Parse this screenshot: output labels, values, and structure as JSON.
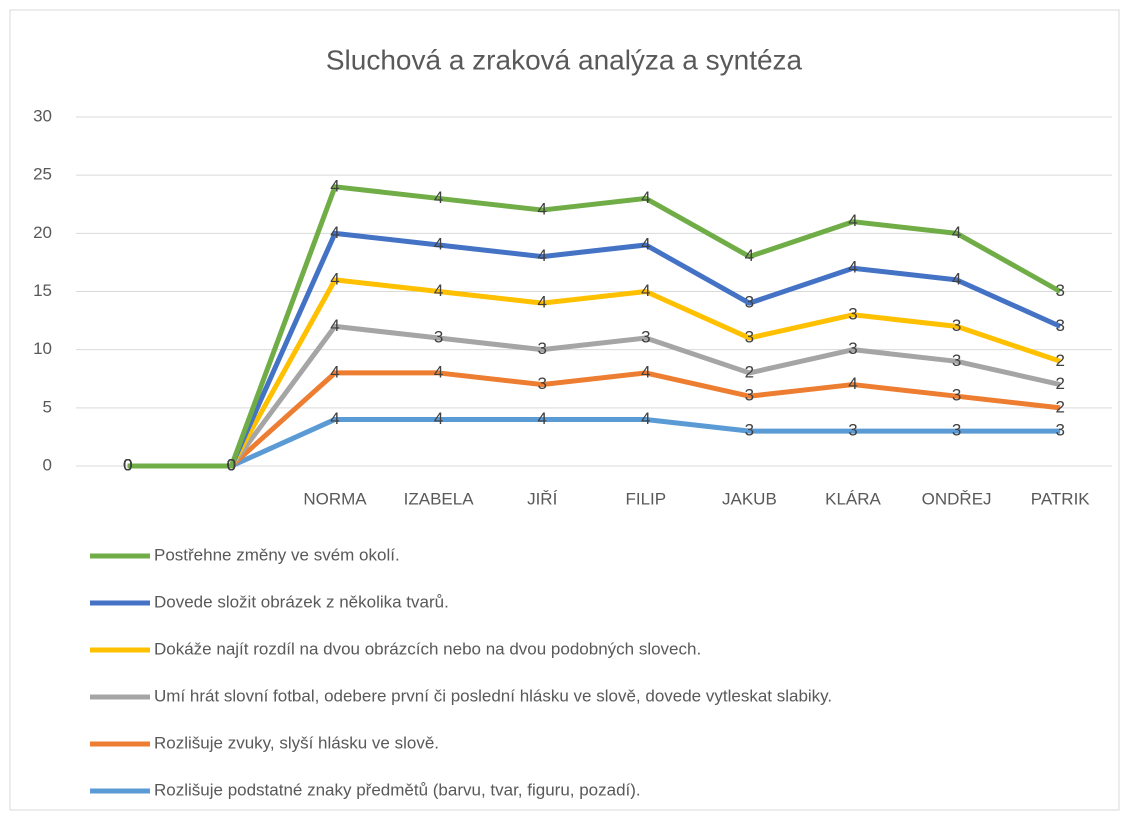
{
  "chart_data": {
    "type": "line",
    "stacked": true,
    "title": "Sluchová a zraková analýza a syntéza",
    "categories": [
      null,
      null,
      "NORMA",
      "IZABELA",
      "JIŘÍ",
      "FILIP",
      "JAKUB",
      "KLÁRA",
      "ONDŘEJ",
      "PATRIK"
    ],
    "series": [
      {
        "name": "Postřehne změny ve svém okolí.",
        "color": "#70ad47",
        "values": [
          0,
          0,
          4,
          4,
          4,
          4,
          4,
          4,
          4,
          3
        ]
      },
      {
        "name": "Dovede složit obrázek z několika tvarů.",
        "color": "#4472c4",
        "values": [
          0,
          0,
          4,
          4,
          4,
          4,
          3,
          4,
          4,
          3
        ]
      },
      {
        "name": "Dokáže najít rozdíl na dvou obrázcích nebo na dvou podobných slovech.",
        "color": "#ffc000",
        "values": [
          0,
          0,
          4,
          4,
          4,
          4,
          3,
          3,
          3,
          2
        ]
      },
      {
        "name": "Umí hrát slovní fotbal, odebere první či poslední hlásku ve slově, dovede vytleskat slabiky.",
        "color": "#a5a5a5",
        "values": [
          0,
          0,
          4,
          3,
          3,
          3,
          2,
          3,
          3,
          2
        ]
      },
      {
        "name": "Rozlišuje zvuky, slyší hlásku ve slově.",
        "color": "#ed7d31",
        "values": [
          0,
          0,
          4,
          4,
          3,
          4,
          3,
          4,
          3,
          2
        ]
      },
      {
        "name": "Rozlišuje podstatné znaky předmětů (barvu, tvar, figuru, pozadí).",
        "color": "#5b9bd5",
        "values": [
          0,
          0,
          4,
          4,
          4,
          4,
          3,
          3,
          3,
          3
        ]
      }
    ],
    "ylim": [
      0,
      30
    ],
    "yticks": [
      0,
      5,
      10,
      15,
      20,
      25,
      30
    ],
    "grid": true,
    "legend": "bottom"
  }
}
